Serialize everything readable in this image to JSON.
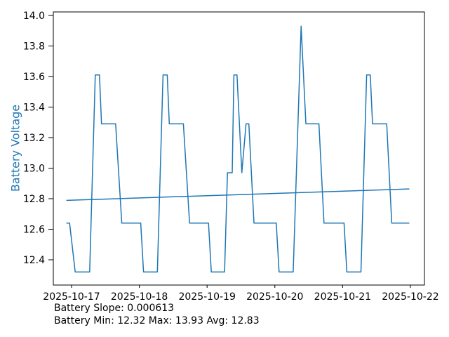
{
  "figure": {
    "background": "#ffffff",
    "ylabel": "Battery Voltage",
    "annotation": {
      "line1": "Battery Slope: 0.000613",
      "line2": "Battery Min: 12.32 Max: 13.93 Avg: 12.83"
    }
  },
  "chart_data": {
    "type": "line",
    "title": "",
    "xlabel": "",
    "ylabel": "Battery Voltage",
    "grid": false,
    "legend": "none",
    "line_color": "#1f77b4",
    "label_color": "#1f77b4",
    "tick_color": "#000000",
    "spine_color": "#000000",
    "x_unit": "hours since 2025-10-17 00:00",
    "xlim_hours": [
      -6.46,
      124.98
    ],
    "ylim": [
      12.2345,
      14.023
    ],
    "xticks": {
      "hours": [
        0,
        24,
        48,
        72,
        96,
        120
      ],
      "labels": [
        "2025-10-17",
        "2025-10-18",
        "2025-10-19",
        "2025-10-20",
        "2025-10-21",
        "2025-10-22"
      ]
    },
    "yticks": {
      "values": [
        12.4,
        12.6,
        12.8,
        13.0,
        13.2,
        13.4,
        13.6,
        13.8,
        14.0
      ],
      "labels": [
        "12.4",
        "12.6",
        "12.8",
        "13.0",
        "13.2",
        "13.4",
        "13.6",
        "13.8",
        "14.0"
      ]
    },
    "series": [
      {
        "name": "battery_voltage",
        "points": [
          [
            -1.7,
            12.64
          ],
          [
            -0.7,
            12.64
          ],
          [
            1.3,
            12.32
          ],
          [
            6.4,
            12.32
          ],
          [
            8.4,
            13.61
          ],
          [
            9.9,
            13.61
          ],
          [
            10.6,
            13.29
          ],
          [
            15.6,
            13.29
          ],
          [
            17.8,
            12.64
          ],
          [
            24.5,
            12.64
          ],
          [
            25.5,
            12.32
          ],
          [
            30.4,
            12.32
          ],
          [
            32.4,
            13.61
          ],
          [
            33.9,
            13.61
          ],
          [
            34.6,
            13.29
          ],
          [
            39.6,
            13.29
          ],
          [
            41.8,
            12.64
          ],
          [
            48.5,
            12.64
          ],
          [
            49.5,
            12.32
          ],
          [
            54.2,
            12.32
          ],
          [
            55.2,
            12.97
          ],
          [
            56.9,
            12.97
          ],
          [
            57.5,
            13.61
          ],
          [
            58.6,
            13.61
          ],
          [
            60.3,
            12.97
          ],
          [
            61.8,
            13.29
          ],
          [
            62.8,
            13.29
          ],
          [
            64.6,
            12.64
          ],
          [
            72.5,
            12.64
          ],
          [
            73.5,
            12.32
          ],
          [
            78.5,
            12.32
          ],
          [
            81.3,
            13.93
          ],
          [
            83.0,
            13.29
          ],
          [
            87.6,
            13.29
          ],
          [
            89.4,
            12.64
          ],
          [
            96.5,
            12.64
          ],
          [
            97.5,
            12.32
          ],
          [
            102.5,
            12.32
          ],
          [
            104.5,
            13.61
          ],
          [
            105.8,
            13.61
          ],
          [
            106.6,
            13.29
          ],
          [
            111.6,
            13.29
          ],
          [
            113.4,
            12.64
          ],
          [
            119.5,
            12.64
          ]
        ]
      },
      {
        "name": "trend",
        "points": [
          [
            -1.7,
            12.789
          ],
          [
            119.5,
            12.864
          ]
        ]
      }
    ],
    "stats": {
      "slope": 0.000613,
      "min": 12.32,
      "max": 13.93,
      "avg": 12.83
    }
  }
}
